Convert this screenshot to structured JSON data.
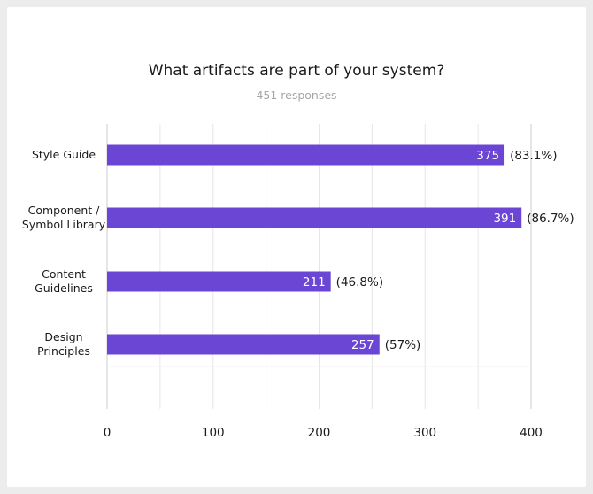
{
  "chart_data": {
    "type": "bar",
    "orientation": "horizontal",
    "title": "What artifacts are part of your system?",
    "subtitle": "451 responses",
    "categories": [
      [
        "Style Guide"
      ],
      [
        "Component /",
        "Symbol Library"
      ],
      [
        "Content",
        "Guidelines"
      ],
      [
        "Design",
        "Principles"
      ]
    ],
    "values": [
      375,
      391,
      211,
      257
    ],
    "value_labels": [
      "375",
      "391",
      "211",
      "257"
    ],
    "percent_labels": [
      "(83.1%)",
      "(86.7%)",
      "(46.8%)",
      "(57%)"
    ],
    "xlim": [
      0,
      400
    ],
    "xticks": [
      0,
      100,
      200,
      300,
      400
    ],
    "xtick_labels": [
      "0",
      "100",
      "200",
      "300",
      "400"
    ],
    "minor_grid_step": 50,
    "colors": {
      "bar": "#6b46d4",
      "grid": "#e6e6e6",
      "axis": "#cccccc"
    }
  }
}
